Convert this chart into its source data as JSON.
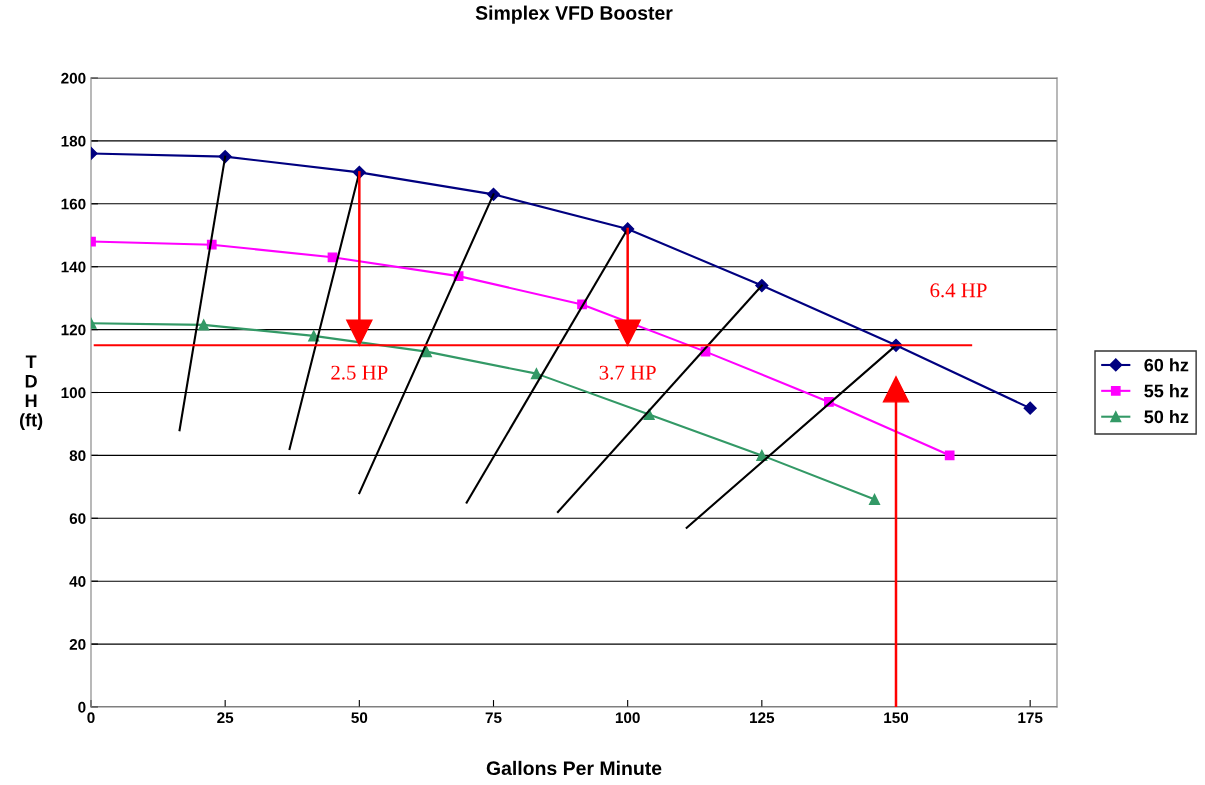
{
  "chart_data": {
    "type": "line",
    "title": "Simplex VFD Booster",
    "xlabel": "Gallons Per Minute",
    "ylabel": "T\nD\nH\n(ft)",
    "xlim": [
      0,
      180
    ],
    "xticks": [
      0,
      25,
      50,
      75,
      100,
      125,
      150,
      175
    ],
    "ylim": [
      0,
      200
    ],
    "yticks": [
      0,
      20,
      40,
      60,
      80,
      100,
      120,
      140,
      160,
      180,
      200
    ],
    "grid": "y",
    "legend": "right",
    "series": [
      {
        "name": "60 hz",
        "color": "#000080",
        "marker": "diamond",
        "x": [
          0,
          25,
          50,
          75,
          100,
          125,
          150,
          175
        ],
        "values": [
          176,
          175,
          170,
          163,
          152,
          134,
          115,
          95
        ]
      },
      {
        "name": "55 hz",
        "color": "#ff00ff",
        "marker": "square",
        "x": [
          0,
          22.5,
          45,
          68.5,
          91.5,
          114.5,
          137.5,
          160
        ],
        "values": [
          148,
          147,
          143,
          137,
          128,
          113,
          97,
          80
        ]
      },
      {
        "name": "50 hz",
        "color": "#339966",
        "marker": "triangle",
        "x": [
          0,
          21,
          41.5,
          62.5,
          83,
          104,
          125,
          146
        ],
        "values": [
          122,
          121.5,
          118,
          113,
          106,
          93,
          80,
          66
        ]
      },
      {
        "color": "#000000",
        "x": [
          16.5,
          25
        ],
        "values": [
          88,
          175
        ]
      },
      {
        "color": "#000000",
        "x": [
          37,
          50
        ],
        "values": [
          82,
          170
        ]
      },
      {
        "color": "#000000",
        "x": [
          50,
          75
        ],
        "values": [
          68,
          163
        ]
      },
      {
        "color": "#000000",
        "x": [
          70,
          100
        ],
        "values": [
          65,
          152
        ]
      },
      {
        "color": "#000000",
        "x": [
          87,
          125
        ],
        "values": [
          62,
          134
        ]
      },
      {
        "color": "#000000",
        "x": [
          111,
          150
        ],
        "values": [
          57,
          115
        ]
      },
      {
        "color": "#ff0000",
        "x": [
          0.7,
          164
        ],
        "values": [
          115,
          115
        ]
      },
      {
        "color": "#ff0000",
        "marker": "triangle",
        "x": [
          50,
          50
        ],
        "values": [
          170,
          119
        ]
      },
      {
        "color": "#ff0000",
        "marker": "triangle",
        "x": [
          100,
          100
        ],
        "values": [
          152,
          119
        ]
      },
      {
        "color": "#ff0000",
        "marker": "triangle",
        "x": [
          150,
          150
        ],
        "values": [
          0,
          101
        ]
      }
    ],
    "annotations": [
      "2.5 HP",
      "3.7 HP",
      "6.4 HP"
    ]
  }
}
